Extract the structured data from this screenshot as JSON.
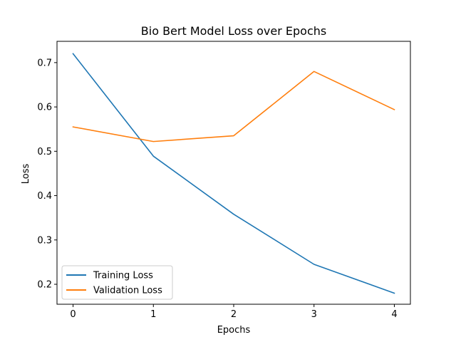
{
  "chart_data": {
    "type": "line",
    "title": "Bio Bert Model Loss over Epochs",
    "xlabel": "Epochs",
    "ylabel": "Loss",
    "x": [
      0,
      1,
      2,
      3,
      4
    ],
    "xlim": [
      -0.2,
      4.2
    ],
    "ylim": [
      0.155,
      0.748
    ],
    "xticks": [
      0,
      1,
      2,
      3,
      4
    ],
    "yticks": [
      0.2,
      0.3,
      0.4,
      0.5,
      0.6,
      0.7
    ],
    "ytick_labels": [
      "0.2",
      "0.3",
      "0.4",
      "0.5",
      "0.6",
      "0.7"
    ],
    "grid": false,
    "legend_position": "lower-left",
    "series": [
      {
        "name": "Training Loss",
        "color": "#1f77b4",
        "values": [
          0.72,
          0.489,
          0.358,
          0.245,
          0.18
        ]
      },
      {
        "name": "Validation Loss",
        "color": "#ff7f0e",
        "values": [
          0.555,
          0.522,
          0.535,
          0.68,
          0.594
        ]
      }
    ]
  }
}
